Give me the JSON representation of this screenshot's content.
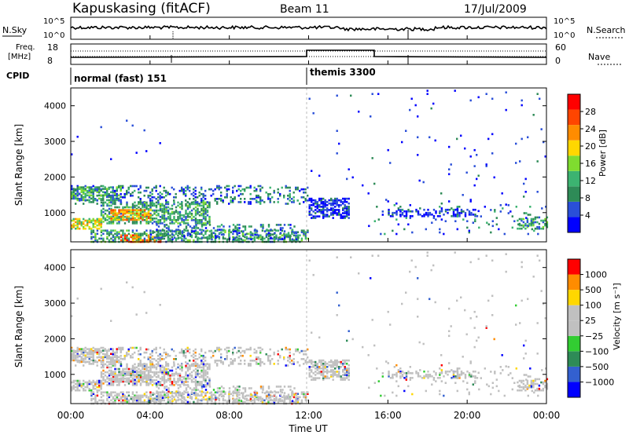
{
  "header": {
    "station": "Kapuskasing (fitACF)",
    "beam": "Beam 11",
    "date": "17/Jul/2009"
  },
  "top_panels": {
    "nsky_label": "N.Sky",
    "nsky_ticks": [
      "10^5",
      "10^0"
    ],
    "nsearch_label": "N.Search",
    "nsearch_ticks": [
      "10^5",
      "10^0"
    ],
    "freq_label_line1": "Freq.",
    "freq_label_line2": "[MHz]",
    "freq_ticks": [
      "18",
      "8"
    ],
    "nave_label": "Nave",
    "nave_ticks": [
      "60",
      "0"
    ],
    "cpid_label": "CPID",
    "cpid_modes": [
      {
        "name": "normal (fast) 151"
      },
      {
        "name": "themis 3300"
      }
    ]
  },
  "colors": {
    "power": [
      "#0000ff",
      "#2a4fd8",
      "#2e8b57",
      "#3cb371",
      "#7fdc2f",
      "#ffd700",
      "#ff8c00",
      "#ff4500",
      "#ff0000"
    ],
    "velocity": [
      "#0000ff",
      "#3360d0",
      "#2e8b57",
      "#32cd32",
      "#c0c0c0",
      "#c0c0c0",
      "#ffd700",
      "#ff8c00",
      "#ff0000"
    ]
  },
  "chart_data": [
    {
      "type": "heatmap",
      "name": "power",
      "ylabel": "Slant Range [km]",
      "yticks": [
        "4000",
        "3000",
        "2000",
        "1000"
      ],
      "ylim": [
        180,
        4500
      ],
      "xlim": [
        0,
        24
      ],
      "colorbar_label": "Power [dB]",
      "colorbar_ticks": [
        "28",
        "24",
        "20",
        "16",
        "12",
        "8",
        "4"
      ],
      "colorbar_range": [
        0,
        30
      ]
    },
    {
      "type": "heatmap",
      "name": "velocity",
      "ylabel": "Slant Range [km]",
      "yticks": [
        "4000",
        "3000",
        "2000",
        "1000"
      ],
      "ylim": [
        180,
        4500
      ],
      "xlim": [
        0,
        24
      ],
      "colorbar_label": "Velocity [m s⁻¹]",
      "colorbar_ticks": [
        "1000",
        "500",
        "100",
        "25",
        "−25",
        "−100",
        "−500",
        "−1000"
      ]
    }
  ],
  "xaxis": {
    "ticks": [
      "00:00",
      "04:00",
      "08:00",
      "12:00",
      "16:00",
      "20:00",
      "00:00"
    ],
    "label": "Time UT"
  }
}
